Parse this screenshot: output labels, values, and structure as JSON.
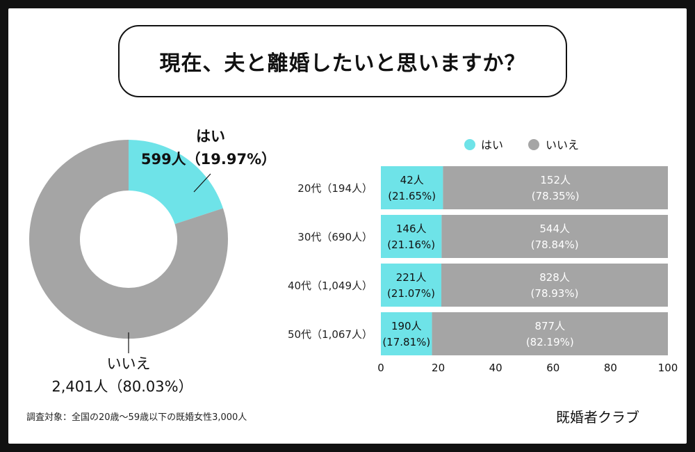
{
  "title": "現在、夫と離婚したいと思いますか？",
  "footnote": "調査対象：全国の20歳〜59歳以下の既婚女性3,000人",
  "brand": "既婚者クラブ",
  "colors": {
    "yes": "#6ee3e8",
    "no": "#a5a5a5"
  },
  "chart_data": [
    {
      "type": "pie",
      "variant": "donut",
      "labels": [
        "はい",
        "いいえ"
      ],
      "values": [
        599,
        2401
      ],
      "value_labels": [
        "599人（19.97%）",
        "2,401人（80.03%）"
      ],
      "percent": [
        19.97,
        80.03
      ]
    },
    {
      "type": "bar",
      "orientation": "horizontal",
      "stacked": true,
      "legend": [
        "はい",
        "いいえ"
      ],
      "legend_position": "top",
      "categories": [
        "20代（194人）",
        "30代（690人）",
        "40代（1,049人）",
        "50代（1,067人）"
      ],
      "xlim": [
        0,
        100
      ],
      "xticks": [
        0,
        20,
        40,
        60,
        80,
        100
      ],
      "series": [
        {
          "name": "はい",
          "values": [
            21.65,
            21.16,
            21.07,
            17.81
          ],
          "counts": [
            "42人",
            "146人",
            "221人",
            "190人"
          ],
          "pct_labels": [
            "(21.65%)",
            "(21.16%)",
            "(21.07%)",
            "(17.81%)"
          ]
        },
        {
          "name": "いいえ",
          "values": [
            78.35,
            78.84,
            78.93,
            82.19
          ],
          "counts": [
            "152人",
            "544人",
            "828人",
            "877人"
          ],
          "pct_labels": [
            "(78.35%)",
            "(78.84%)",
            "(78.93%)",
            "(82.19%)"
          ]
        }
      ]
    }
  ]
}
